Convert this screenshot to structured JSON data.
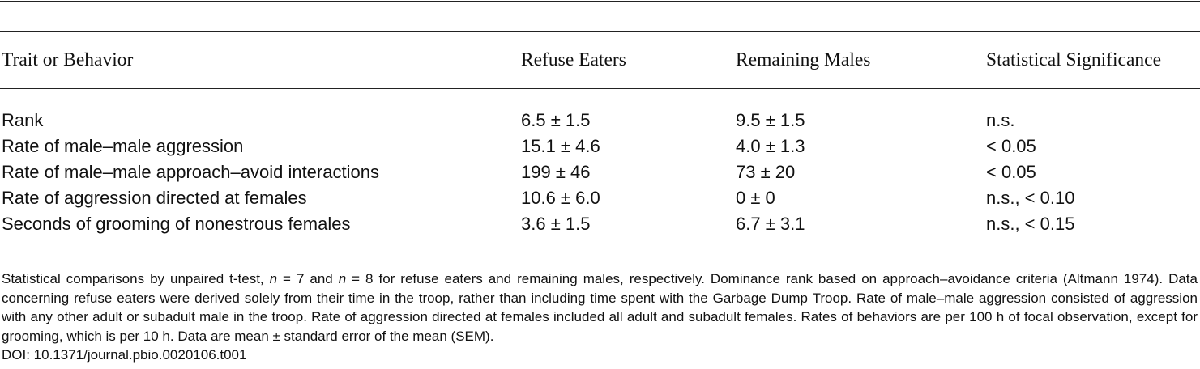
{
  "table": {
    "headers": [
      "Trait or Behavior",
      "Refuse Eaters",
      "Remaining Males",
      "Statistical Significance"
    ],
    "rows": [
      [
        "Rank",
        "6.5 ± 1.5",
        "9.5 ± 1.5",
        "n.s."
      ],
      [
        "Rate of male–male aggression",
        "15.1 ± 4.6",
        "4.0 ± 1.3",
        "< 0.05"
      ],
      [
        "Rate of male–male approach–avoid interactions",
        "199 ± 46",
        "73 ± 20",
        "< 0.05"
      ],
      [
        "Rate of aggression directed at females",
        "10.6 ± 6.0",
        "0 ± 0",
        "n.s., < 0.10"
      ],
      [
        "Seconds of grooming of nonestrous females",
        "3.6 ± 1.5",
        "6.7 ± 3.1",
        "n.s., < 0.15"
      ]
    ]
  },
  "footnote": {
    "part1": "Statistical comparisons by unpaired t-test, ",
    "n_var": "n",
    "part2": " = 7 and ",
    "part3": " = 8 for refuse eaters and remaining males, respectively. Dominance rank based on approach–avoidance criteria (Altmann 1974). Data concerning refuse eaters were derived solely from their time in the troop, rather than including time spent with the Garbage Dump Troop. Rate of male–male aggression consisted of aggression with any other adult or subadult male in the troop. Rate of aggression directed at females included all adult and subadult females. Rates of behaviors are per 100 h of focal observation, except for grooming, which is per 10 h. Data are mean ± standard error of the mean (SEM).",
    "doi": "DOI: 10.1371/journal.pbio.0020106.t001"
  }
}
